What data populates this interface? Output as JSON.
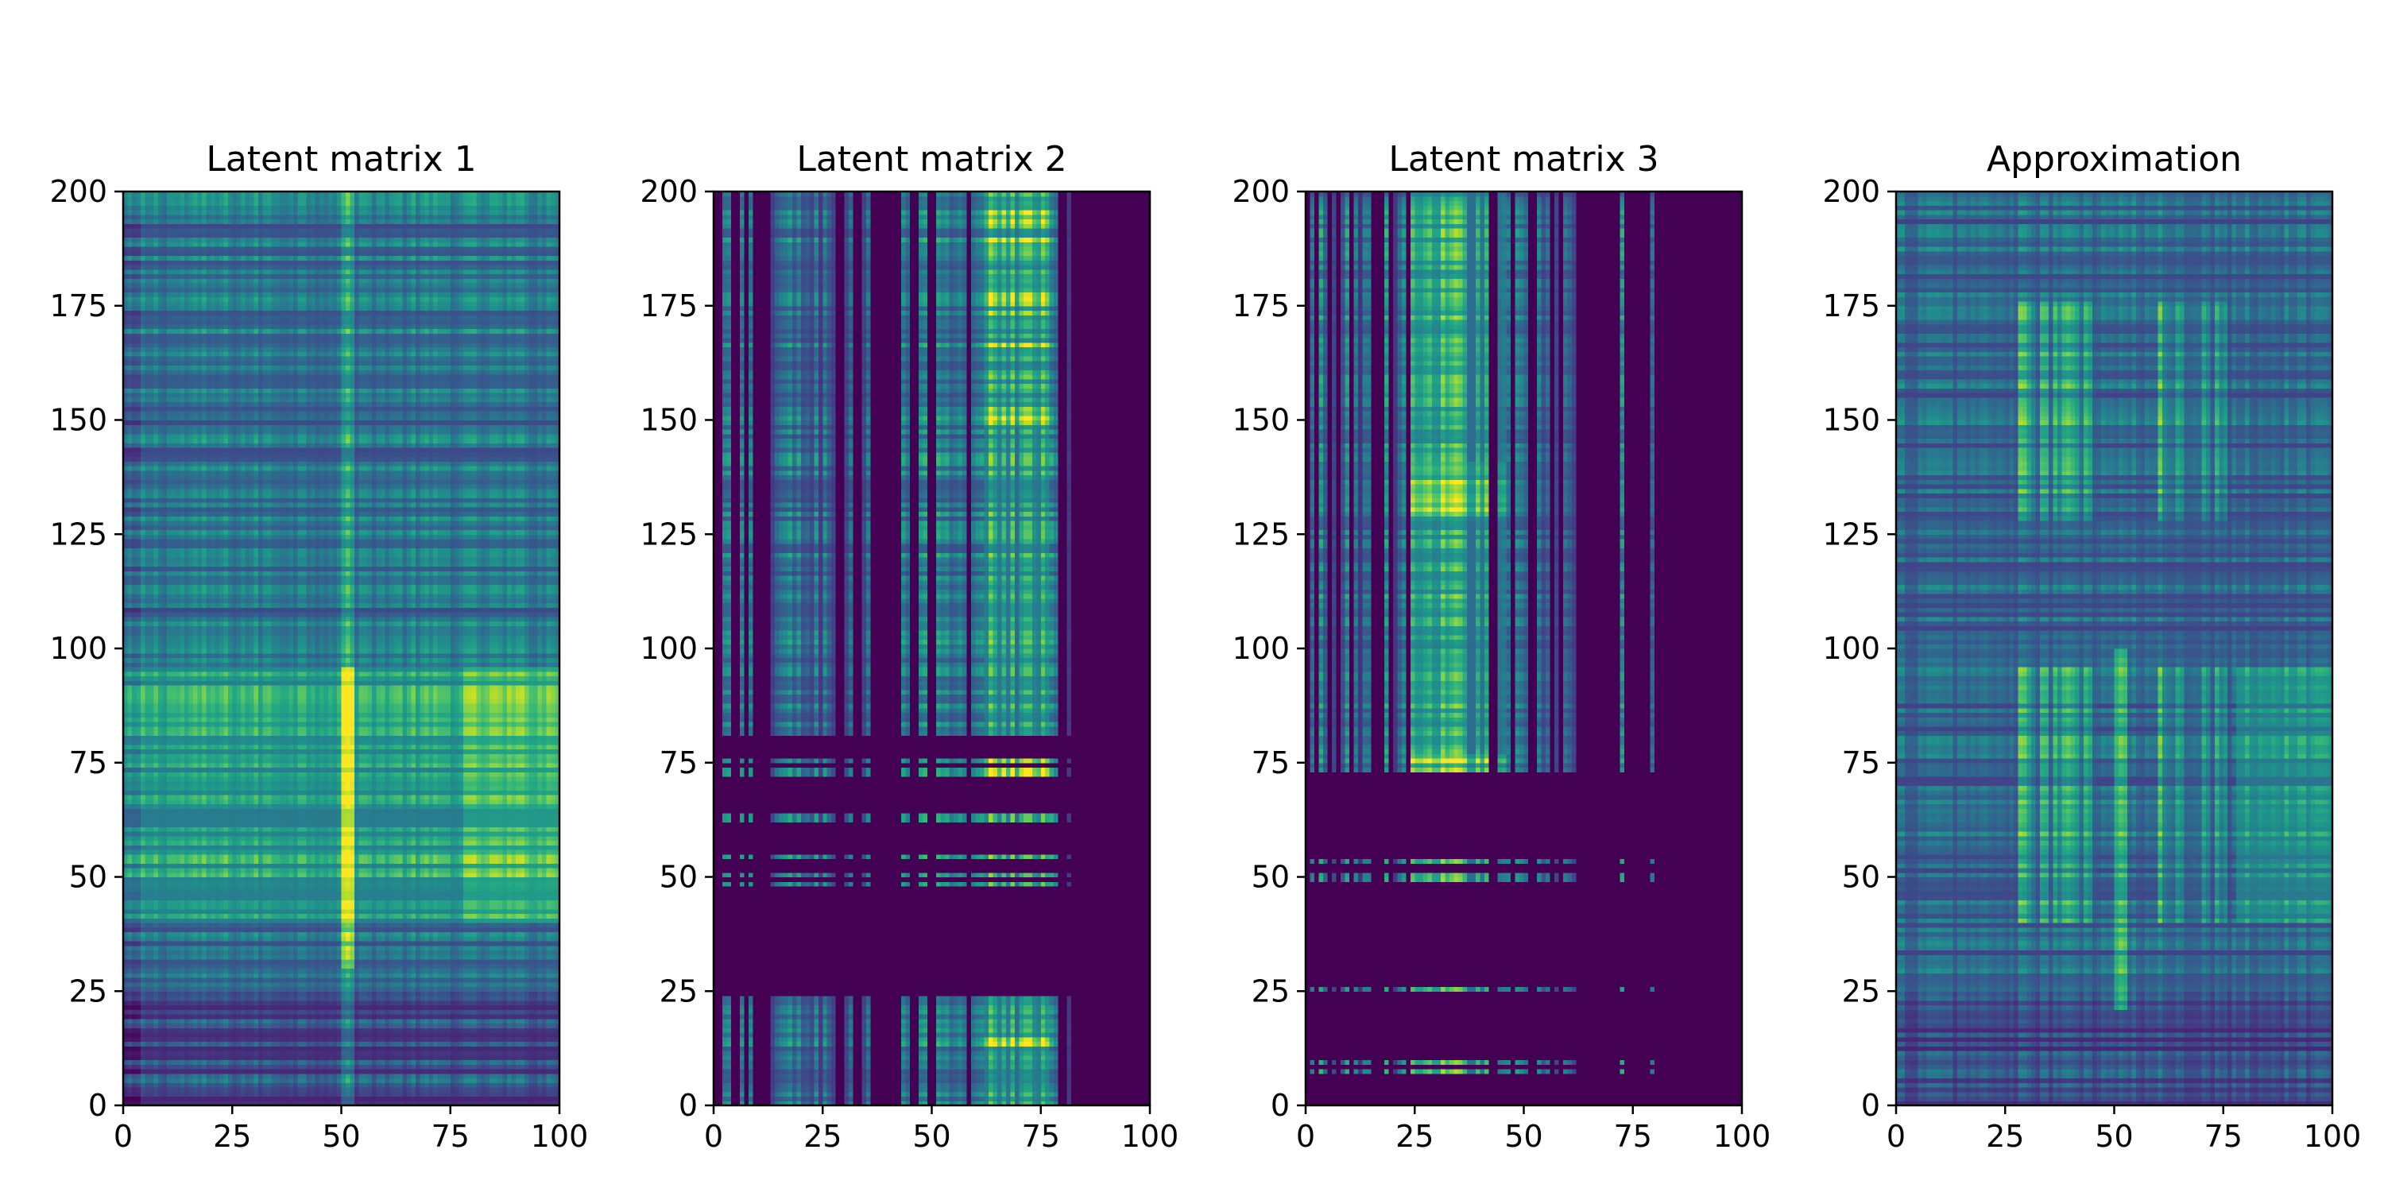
{
  "chart_data": [
    {
      "type": "heatmap",
      "title": "Latent matrix 1",
      "xlim": [
        0,
        100
      ],
      "ylim": [
        0,
        200
      ],
      "xticks": [
        0,
        25,
        50,
        75,
        100
      ],
      "yticks": [
        0,
        25,
        50,
        75,
        100,
        125,
        150,
        175,
        200
      ],
      "colormap": "viridis",
      "grid": false,
      "pattern": {
        "description_free": true,
        "bright_column_x": 51,
        "bright_row_band": [
          40,
          95
        ],
        "bright_right_band_x": [
          78,
          100
        ],
        "dark_rows_below": 25
      }
    },
    {
      "type": "heatmap",
      "title": "Latent matrix 2",
      "xlim": [
        0,
        100
      ],
      "ylim": [
        0,
        200
      ],
      "xticks": [
        0,
        25,
        50,
        75,
        100
      ],
      "yticks": [
        0,
        25,
        50,
        75,
        100,
        125,
        150,
        175,
        200
      ],
      "colormap": "viridis",
      "grid": false,
      "pattern": {
        "active_columns_x": [
          2,
          3,
          6,
          8,
          13,
          14,
          15,
          16,
          17,
          18,
          19,
          20,
          21,
          22,
          23,
          24,
          25,
          26,
          27,
          30,
          31,
          34,
          35,
          43,
          44,
          47,
          48,
          51,
          52,
          53,
          54,
          55,
          56,
          57,
          59,
          60,
          61,
          62,
          63,
          64,
          65,
          66,
          67,
          68,
          69,
          70,
          71,
          72,
          73,
          74,
          75,
          76,
          77,
          78,
          81
        ],
        "zero_rows_y": [
          [
            24,
            45
          ],
          [
            78,
            80
          ]
        ],
        "hot_columns_x": [
          62,
          76
        ],
        "hot_rows_y": [
          [
            148,
            200
          ],
          [
            72,
            76
          ],
          [
            12,
            14
          ]
        ]
      }
    },
    {
      "type": "heatmap",
      "title": "Latent matrix 3",
      "xlim": [
        0,
        100
      ],
      "ylim": [
        0,
        200
      ],
      "xticks": [
        0,
        25,
        50,
        75,
        100
      ],
      "yticks": [
        0,
        25,
        50,
        75,
        100,
        125,
        150,
        175,
        200
      ],
      "colormap": "viridis",
      "grid": false,
      "pattern": {
        "active_columns_x": [
          1,
          3,
          4,
          6,
          8,
          9,
          11,
          12,
          13,
          14,
          18,
          20,
          21,
          22,
          24,
          25,
          26,
          27,
          28,
          29,
          30,
          31,
          32,
          33,
          34,
          35,
          36,
          37,
          38,
          39,
          40,
          41,
          44,
          45,
          46,
          48,
          49,
          50,
          53,
          54,
          55,
          57,
          59,
          60,
          61,
          72,
          79
        ],
        "zero_rows_y": [
          [
            62,
            72
          ],
          [
            30,
            38
          ]
        ],
        "hot_columns_x": [
          24,
          45
        ],
        "hot_rows_y": [
          [
            128,
            140
          ],
          [
            72,
            76
          ]
        ]
      }
    },
    {
      "type": "heatmap",
      "title": "Approximation",
      "xlim": [
        0,
        100
      ],
      "ylim": [
        0,
        200
      ],
      "xticks": [
        0,
        25,
        50,
        75,
        100
      ],
      "yticks": [
        0,
        25,
        50,
        75,
        100,
        125,
        150,
        175,
        200
      ],
      "colormap": "viridis",
      "grid": false,
      "pattern": {
        "bright_column_x": 51,
        "hot_columns_x": [
          [
            28,
            45
          ],
          [
            60,
            75
          ]
        ],
        "hot_rows_y": [
          [
            128,
            175
          ],
          [
            70,
            78
          ],
          [
            40,
            95
          ]
        ],
        "bright_right_band_x": [
          78,
          100
        ]
      }
    }
  ]
}
